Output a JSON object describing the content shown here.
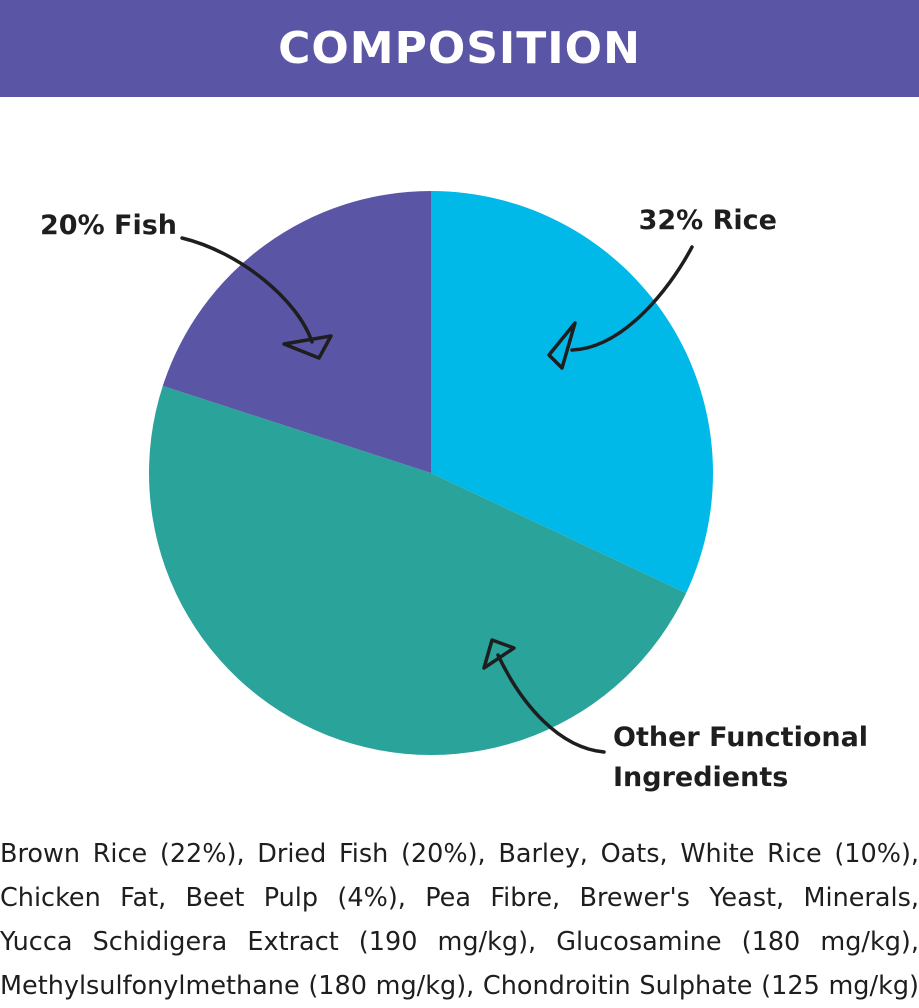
{
  "header": {
    "title": "COMPOSITION"
  },
  "chart_data": {
    "type": "pie",
    "slices": [
      {
        "label": "32% Rice",
        "value": 32,
        "color": "#00b9e8",
        "label_lines": [
          "32% Rice"
        ]
      },
      {
        "label": "Other Functional Ingredients",
        "value": 48,
        "color": "#2aa39a",
        "label_lines": [
          "Other Functional",
          "Ingredients"
        ]
      },
      {
        "label": "20% Fish",
        "value": 20,
        "color": "#5a55a4",
        "label_lines": [
          "20% Fish"
        ]
      }
    ],
    "start": "12 o'clock",
    "direction": "clockwise"
  },
  "ingredients": {
    "lines": [
      "Brown Rice (22%), Dried Fish (20%), Barley, Oats, White Rice (10%),",
      "Chicken Fat, Beet Pulp (4%), Pea Fibre, Brewer's Yeast, Minerals,",
      "Yucca Schidigera Extract (190 mg/kg), Glucosamine (180 mg/kg),",
      "Methylsulfonylmethane (180 mg/kg), Chondroitin Sulphate (125 mg/kg)"
    ]
  },
  "colors": {
    "header_bg": "#5a55a4",
    "header_text": "#ffffff",
    "text": "#1e1e1e"
  }
}
